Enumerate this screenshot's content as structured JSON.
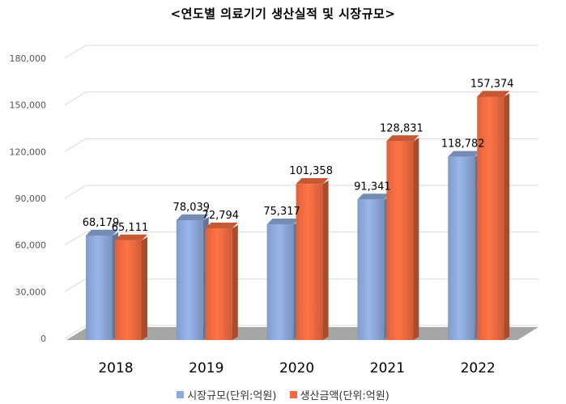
{
  "chart_data": {
    "type": "bar",
    "title": "<연도별 의료기기 생산실적 및 시장규모>",
    "categories": [
      "2018",
      "2019",
      "2020",
      "2021",
      "2022"
    ],
    "series": [
      {
        "name": "시장규모(단위:억원)",
        "values": [
          68179,
          78039,
          75317,
          91341,
          118782
        ],
        "color": "#8EA9DB",
        "data_labels": [
          "68,179",
          "78,039",
          "75,317",
          "91,341",
          "118,782"
        ]
      },
      {
        "name": "생산금액(단위:억원)",
        "values": [
          65111,
          72794,
          101358,
          128831,
          157374
        ],
        "color": "#F26B40",
        "data_labels": [
          "65,111",
          "72,794",
          "101,358",
          "128,831",
          "157,374"
        ]
      }
    ],
    "ylim": [
      0,
      180000
    ],
    "yticks": [
      "0",
      "30,000",
      "60,000",
      "90,000",
      "120,000",
      "150,000",
      "180,000"
    ],
    "ytick_values": [
      0,
      30000,
      60000,
      90000,
      120000,
      150000,
      180000
    ],
    "grid": true,
    "legend_position": "bottom"
  }
}
